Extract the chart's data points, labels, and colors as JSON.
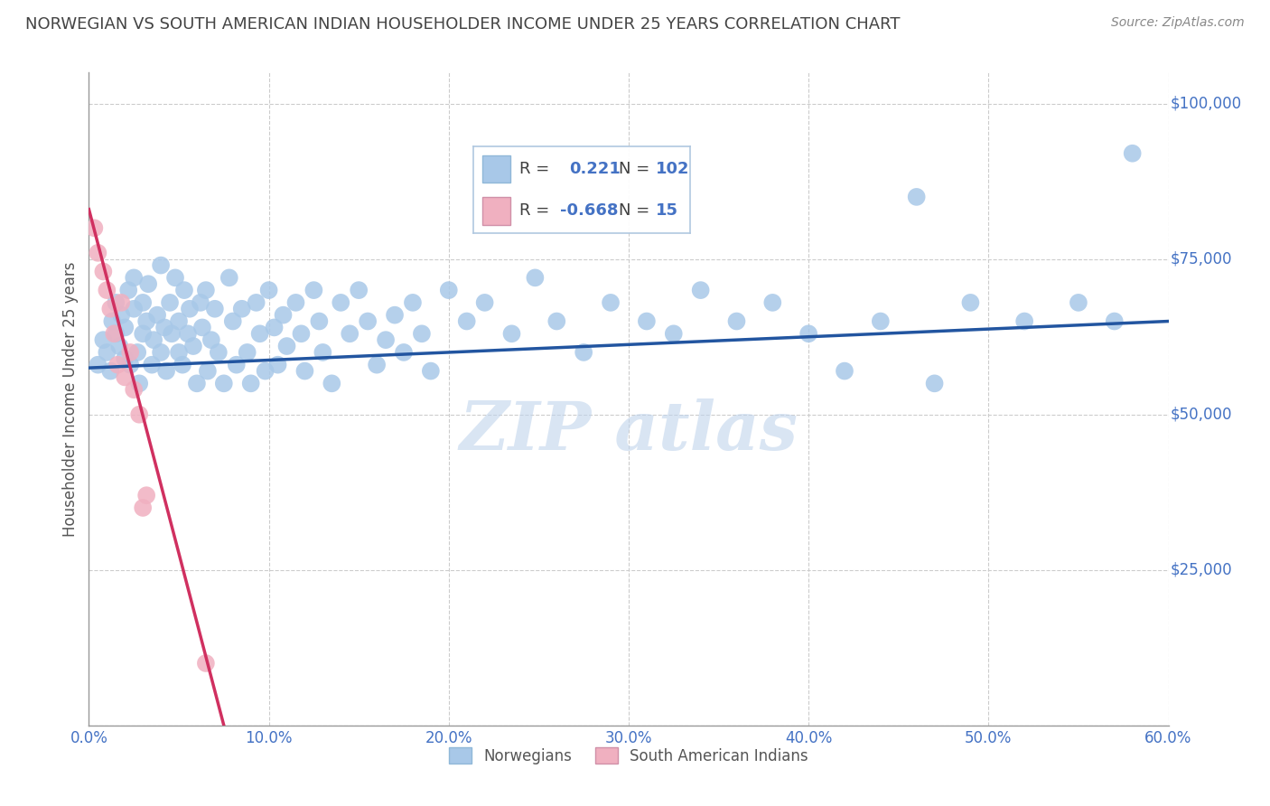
{
  "title": "NORWEGIAN VS SOUTH AMERICAN INDIAN HOUSEHOLDER INCOME UNDER 25 YEARS CORRELATION CHART",
  "source": "Source: ZipAtlas.com",
  "ylabel": "Householder Income Under 25 years",
  "xlim": [
    0.0,
    0.6
  ],
  "ylim": [
    0,
    105000
  ],
  "xtick_vals": [
    0.0,
    0.1,
    0.2,
    0.3,
    0.4,
    0.5,
    0.6
  ],
  "xtick_labels": [
    "0.0%",
    "10.0%",
    "20.0%",
    "30.0%",
    "40.0%",
    "50.0%",
    "60.0%"
  ],
  "ytick_vals": [
    25000,
    50000,
    75000,
    100000
  ],
  "ytick_labels": [
    "$25,000",
    "$50,000",
    "$75,000",
    "$100,000"
  ],
  "norwegian_R": 0.221,
  "norwegian_N": 102,
  "south_american_R": -0.668,
  "south_american_N": 15,
  "blue_color": "#a8c8e8",
  "blue_line_color": "#2255a0",
  "pink_color": "#f0b0c0",
  "pink_line_color": "#d03060",
  "background_color": "#ffffff",
  "grid_color": "#cccccc",
  "title_color": "#444444",
  "axis_label_color": "#555555",
  "tick_label_color": "#4472c4",
  "watermark_color": "#c0d4ec",
  "norwegian_x": [
    0.005,
    0.008,
    0.01,
    0.012,
    0.013,
    0.015,
    0.015,
    0.017,
    0.018,
    0.02,
    0.02,
    0.022,
    0.023,
    0.025,
    0.025,
    0.027,
    0.028,
    0.03,
    0.03,
    0.032,
    0.033,
    0.035,
    0.036,
    0.038,
    0.04,
    0.04,
    0.042,
    0.043,
    0.045,
    0.046,
    0.048,
    0.05,
    0.05,
    0.052,
    0.053,
    0.055,
    0.056,
    0.058,
    0.06,
    0.062,
    0.063,
    0.065,
    0.066,
    0.068,
    0.07,
    0.072,
    0.075,
    0.078,
    0.08,
    0.082,
    0.085,
    0.088,
    0.09,
    0.093,
    0.095,
    0.098,
    0.1,
    0.103,
    0.105,
    0.108,
    0.11,
    0.115,
    0.118,
    0.12,
    0.125,
    0.128,
    0.13,
    0.135,
    0.14,
    0.145,
    0.15,
    0.155,
    0.16,
    0.165,
    0.17,
    0.175,
    0.18,
    0.185,
    0.19,
    0.2,
    0.21,
    0.22,
    0.235,
    0.248,
    0.26,
    0.275,
    0.29,
    0.31,
    0.325,
    0.34,
    0.36,
    0.38,
    0.4,
    0.42,
    0.44,
    0.47,
    0.49,
    0.52,
    0.55,
    0.57,
    0.46,
    0.58
  ],
  "norwegian_y": [
    58000,
    62000,
    60000,
    57000,
    65000,
    63000,
    68000,
    61000,
    66000,
    59000,
    64000,
    70000,
    58000,
    67000,
    72000,
    60000,
    55000,
    63000,
    68000,
    65000,
    71000,
    58000,
    62000,
    66000,
    60000,
    74000,
    64000,
    57000,
    68000,
    63000,
    72000,
    60000,
    65000,
    58000,
    70000,
    63000,
    67000,
    61000,
    55000,
    68000,
    64000,
    70000,
    57000,
    62000,
    67000,
    60000,
    55000,
    72000,
    65000,
    58000,
    67000,
    60000,
    55000,
    68000,
    63000,
    57000,
    70000,
    64000,
    58000,
    66000,
    61000,
    68000,
    63000,
    57000,
    70000,
    65000,
    60000,
    55000,
    68000,
    63000,
    70000,
    65000,
    58000,
    62000,
    66000,
    60000,
    68000,
    63000,
    57000,
    70000,
    65000,
    68000,
    63000,
    72000,
    65000,
    60000,
    68000,
    65000,
    63000,
    70000,
    65000,
    68000,
    63000,
    57000,
    65000,
    55000,
    68000,
    65000,
    68000,
    65000,
    85000,
    92000
  ],
  "south_american_x": [
    0.003,
    0.005,
    0.008,
    0.01,
    0.012,
    0.014,
    0.016,
    0.018,
    0.02,
    0.023,
    0.025,
    0.028,
    0.03,
    0.032,
    0.065
  ],
  "south_american_y": [
    80000,
    76000,
    73000,
    70000,
    67000,
    63000,
    58000,
    68000,
    56000,
    60000,
    54000,
    50000,
    35000,
    37000,
    10000
  ],
  "nor_trend_x0": 0.0,
  "nor_trend_y0": 57500,
  "nor_trend_x1": 0.6,
  "nor_trend_y1": 65000,
  "sa_trend_x0": 0.0,
  "sa_trend_y0": 83000,
  "sa_trend_x1": 0.075,
  "sa_trend_y1": 0
}
